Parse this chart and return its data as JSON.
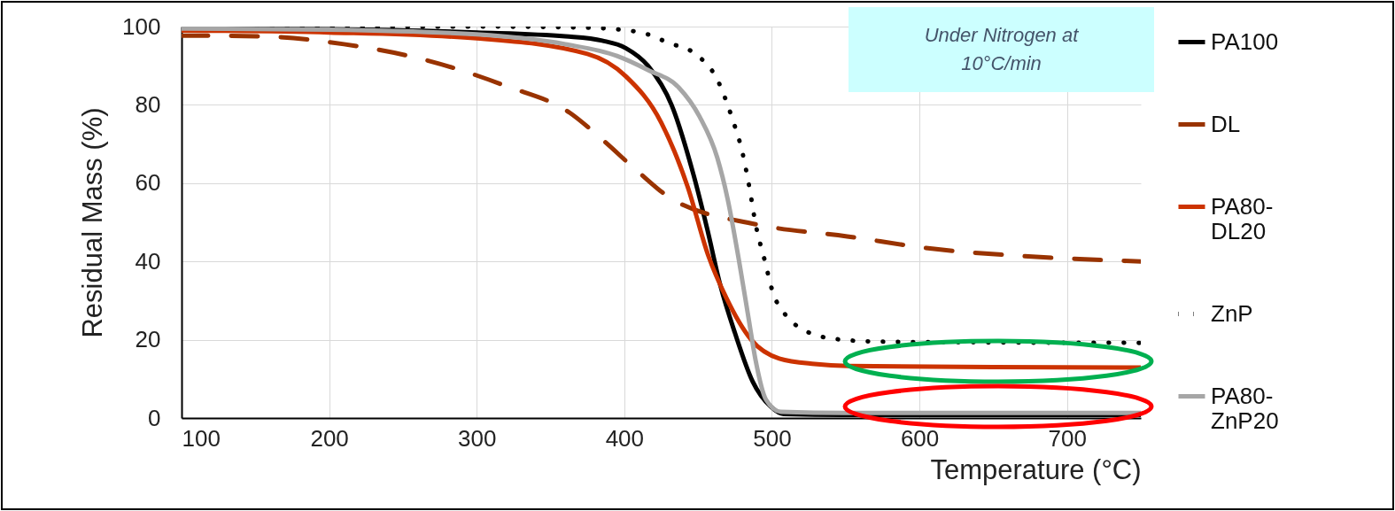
{
  "chart_data": {
    "type": "line",
    "xlabel": "Temperature (°C)",
    "ylabel": "Residual Mass (%)",
    "annotations": [
      "Under Nitrogen at 10°C/min"
    ],
    "xlim": [
      100,
      750
    ],
    "xticks": [
      100,
      200,
      300,
      400,
      500,
      600,
      700
    ],
    "ylim": [
      0,
      100
    ],
    "yticks": [
      0,
      20,
      40,
      60,
      80,
      100
    ],
    "grid": true,
    "legend": "right",
    "series": [
      {
        "name": "PA100",
        "color": "#000000",
        "line_style": "solid",
        "x": [
          100,
          200,
          300,
          360,
          385,
          401,
          416,
          432,
          447,
          456,
          465,
          475,
          487,
          499,
          508,
          550,
          650,
          750
        ],
        "values": [
          99.5,
          99.3,
          98.5,
          97.5,
          96.4,
          94.5,
          90,
          80,
          62,
          48.6,
          34,
          21.7,
          9.3,
          3,
          1,
          0.8,
          0.8,
          0.8
        ]
      },
      {
        "name": "DL",
        "color": "#993300",
        "line_style": "dashed",
        "x": [
          100,
          155,
          210,
          266,
          320,
          363,
          384,
          410,
          432,
          489,
          551,
          610,
          669,
          750
        ],
        "values": [
          97.7,
          97.5,
          95.5,
          91.4,
          84.8,
          78,
          71.5,
          62.7,
          56,
          49.5,
          46.4,
          43.2,
          41.4,
          40
        ]
      },
      {
        "name": "PA80-DL20",
        "color": "#cc3300",
        "line_style": "solid",
        "x": [
          100,
          200,
          300,
          375,
          401,
          425,
          443,
          457,
          469,
          486,
          505,
          529,
          552,
          650,
          750
        ],
        "values": [
          99,
          98.5,
          97,
          93,
          87.3,
          75.5,
          59,
          41.4,
          30.8,
          20,
          15.2,
          13.8,
          13.3,
          13,
          12.9
        ]
      },
      {
        "name": "ZnP",
        "color": "#000000",
        "line_style": "dotted",
        "x": [
          100,
          200,
          300,
          375,
          410,
          431,
          447,
          464,
          473,
          480,
          485,
          489,
          495,
          501,
          508,
          517,
          529,
          545,
          574,
          650,
          750
        ],
        "values": [
          100,
          100,
          100,
          99.7,
          98.6,
          95.7,
          93.3,
          85.7,
          76.7,
          67.9,
          58.4,
          49.5,
          40.5,
          31.7,
          27,
          23.5,
          21.3,
          20.1,
          19.5,
          19.3,
          19.2
        ]
      },
      {
        "name": "PA80-ZnP20",
        "color": "#a6a6a6",
        "line_style": "solid",
        "x": [
          100,
          200,
          300,
          360,
          395,
          416,
          437,
          451,
          463,
          470,
          478,
          484,
          489,
          496,
          506,
          550,
          650,
          750
        ],
        "values": [
          99.5,
          99.2,
          98,
          95.5,
          92.5,
          88.9,
          84.4,
          77,
          66.5,
          56,
          39.6,
          26,
          14.7,
          4.7,
          1.6,
          1.3,
          1.3,
          1.3
        ]
      }
    ]
  }
}
